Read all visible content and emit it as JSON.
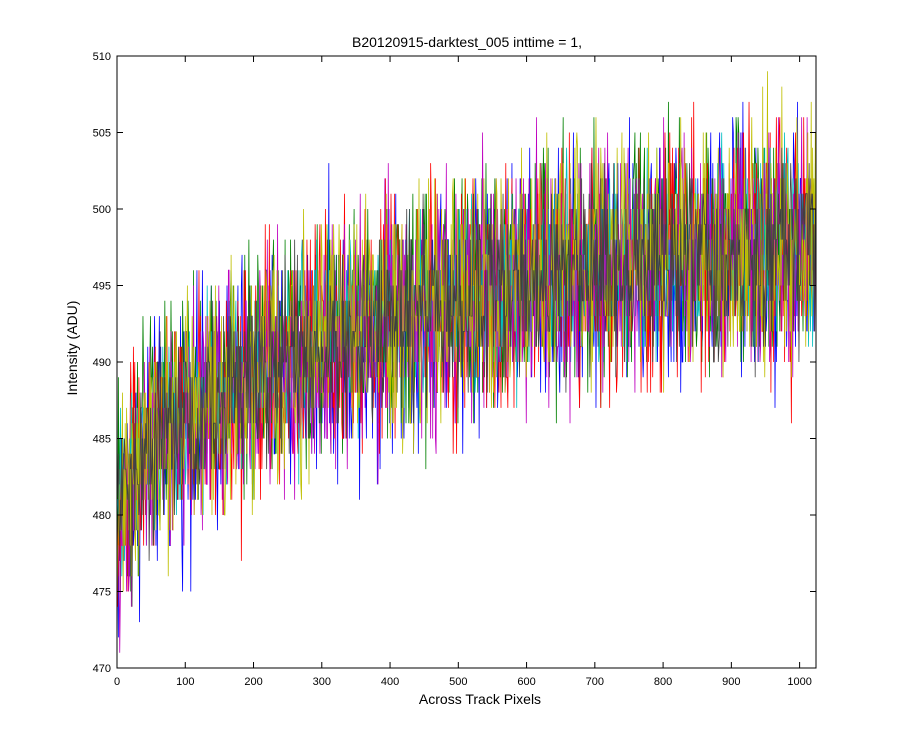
{
  "chart_data": {
    "type": "line",
    "title": "B20120915-darktest_005 inttime = 1,",
    "xlabel": "Across Track Pixels",
    "ylabel": "Intensity (ADU)",
    "xlim": [
      0,
      1024
    ],
    "ylim": [
      470,
      510
    ],
    "x_ticks": [
      0,
      100,
      200,
      300,
      400,
      500,
      600,
      700,
      800,
      900,
      1000
    ],
    "y_ticks": [
      470,
      475,
      480,
      485,
      490,
      495,
      500,
      505,
      510
    ],
    "grid": false,
    "legend": "none",
    "series": [
      {
        "color": "#0000ff",
        "trend_x": [
          0,
          10,
          50,
          100,
          200,
          300,
          400,
          500,
          600,
          700,
          800,
          900,
          1024
        ],
        "trend_y": [
          478,
          481,
          484,
          486,
          489,
          491,
          492.5,
          494,
          495,
          496,
          496.5,
          497,
          497.5
        ],
        "noise_amplitude": 4
      },
      {
        "color": "#008000",
        "trend_x": [
          0,
          10,
          50,
          100,
          200,
          300,
          400,
          500,
          600,
          700,
          800,
          900,
          1024
        ],
        "trend_y": [
          479,
          482,
          485,
          487,
          489.5,
          491.5,
          493,
          494.5,
          495.5,
          496.5,
          497,
          497.5,
          498
        ],
        "noise_amplitude": 4
      },
      {
        "color": "#ff0000",
        "trend_x": [
          0,
          10,
          50,
          100,
          200,
          300,
          400,
          500,
          600,
          700,
          800,
          900,
          1024
        ],
        "trend_y": [
          478.5,
          481.5,
          484.5,
          486.5,
          489,
          491,
          493,
          494,
          495,
          496,
          496.5,
          497,
          497.5
        ],
        "noise_amplitude": 4
      },
      {
        "color": "#00bfbf",
        "trend_x": [
          0,
          10,
          50,
          100,
          200,
          300,
          400,
          500,
          600,
          700,
          800,
          900,
          1024
        ],
        "trend_y": [
          479,
          482,
          485,
          487,
          489.5,
          491.5,
          493,
          494.5,
          495.5,
          496.5,
          497,
          497.5,
          498
        ],
        "noise_amplitude": 3
      },
      {
        "color": "#bf00bf",
        "trend_x": [
          0,
          10,
          50,
          100,
          200,
          300,
          400,
          500,
          600,
          700,
          800,
          900,
          1024
        ],
        "trend_y": [
          478,
          481,
          484,
          486,
          489,
          491,
          492.5,
          494,
          495,
          496,
          496.5,
          497,
          497.5
        ],
        "noise_amplitude": 4
      },
      {
        "color": "#bfbf00",
        "trend_x": [
          0,
          10,
          50,
          100,
          200,
          300,
          400,
          500,
          600,
          700,
          800,
          900,
          1024
        ],
        "trend_y": [
          479,
          482,
          485,
          487,
          489.5,
          491.5,
          493,
          494.5,
          495.5,
          496.5,
          497,
          497.5,
          498
        ],
        "noise_amplitude": 4
      },
      {
        "color": "#404040",
        "trend_x": [
          0,
          10,
          50,
          100,
          200,
          300,
          400,
          500,
          600,
          700,
          800,
          900,
          1024
        ],
        "trend_y": [
          478.5,
          481.5,
          484.5,
          486.5,
          489,
          491,
          493,
          494,
          495,
          496,
          496.5,
          497,
          497.5
        ],
        "noise_amplitude": 3
      }
    ]
  }
}
